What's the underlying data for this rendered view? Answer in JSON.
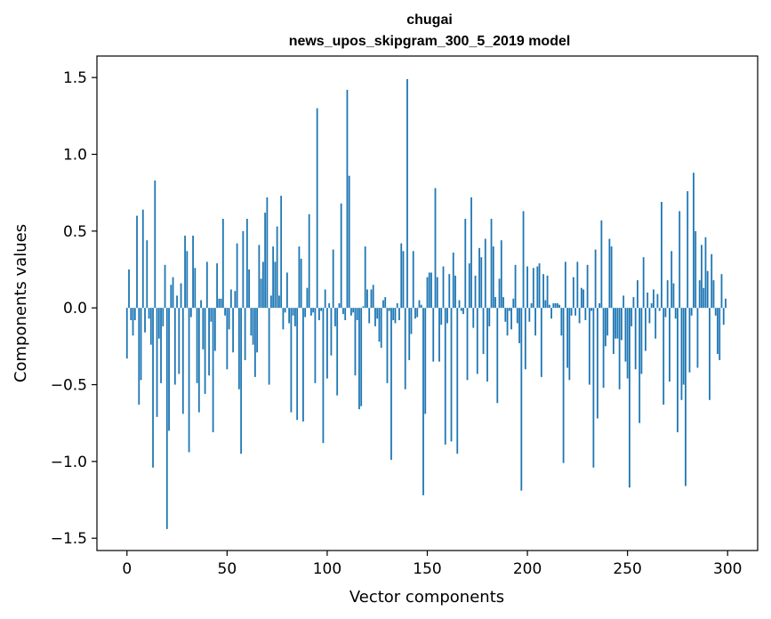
{
  "chart_data": {
    "type": "bar",
    "title": "chugai",
    "subtitle": "news_upos_skipgram_300_5_2019 model",
    "xlabel": "Vector components",
    "ylabel": "Components values",
    "xlim": [
      -15,
      315
    ],
    "ylim": [
      -1.58,
      1.64
    ],
    "xticks": [
      0,
      50,
      100,
      150,
      200,
      250,
      300
    ],
    "yticks": [
      -1.5,
      -1.0,
      -0.5,
      0.0,
      0.5,
      1.0,
      1.5
    ],
    "ytick_labels": [
      "−1.5",
      "−1.0",
      "−0.5",
      "0.0",
      "0.5",
      "1.0",
      "1.5"
    ],
    "grid": false,
    "color": "#1f77b4",
    "values": [
      -0.33,
      0.25,
      -0.08,
      -0.18,
      -0.08,
      0.6,
      -0.63,
      -0.47,
      0.64,
      -0.16,
      0.44,
      -0.07,
      -0.24,
      -1.04,
      0.83,
      -0.71,
      -0.2,
      -0.49,
      -0.12,
      0.28,
      -1.44,
      -0.8,
      0.15,
      0.2,
      -0.5,
      0.08,
      -0.43,
      0.16,
      -0.69,
      0.47,
      0.37,
      -0.94,
      -0.06,
      0.47,
      0.26,
      -0.49,
      -0.68,
      0.05,
      -0.27,
      -0.56,
      0.3,
      -0.44,
      -0.09,
      -0.81,
      -0.28,
      0.29,
      0.06,
      0.06,
      0.58,
      -0.05,
      -0.4,
      -0.14,
      0.12,
      -0.29,
      0.11,
      0.42,
      -0.53,
      -0.95,
      0.5,
      -0.34,
      0.58,
      0.25,
      -0.18,
      -0.24,
      -0.45,
      -0.29,
      0.41,
      0.19,
      0.3,
      0.62,
      0.72,
      -0.5,
      0.08,
      0.4,
      0.3,
      0.53,
      0.08,
      0.73,
      -0.14,
      -0.03,
      0.23,
      -0.1,
      -0.68,
      -0.05,
      -0.12,
      -0.73,
      0.4,
      0.32,
      -0.74,
      -0.06,
      0.13,
      0.61,
      -0.05,
      -0.03,
      -0.49,
      1.3,
      -0.08,
      -0.02,
      -0.88,
      0.12,
      -0.46,
      0.03,
      -0.31,
      0.38,
      -0.12,
      -0.57,
      0.03,
      0.68,
      -0.04,
      -0.08,
      1.42,
      0.86,
      -0.05,
      -0.03,
      -0.44,
      -0.08,
      -0.66,
      -0.64,
      0.01,
      0.4,
      0.12,
      -0.1,
      0.12,
      0.15,
      -0.12,
      -0.07,
      -0.22,
      -0.26,
      0.05,
      0.07,
      -0.49,
      -0.02,
      -0.99,
      -0.08,
      -0.1,
      0.03,
      -0.08,
      0.42,
      0.37,
      -0.53,
      1.49,
      -0.34,
      -0.17,
      0.37,
      -0.07,
      -0.06,
      0.05,
      0.02,
      -1.22,
      -0.69,
      0.2,
      0.23,
      0.23,
      -0.35,
      0.78,
      0.2,
      -0.35,
      -0.11,
      0.27,
      -0.89,
      -0.1,
      0.22,
      -0.87,
      0.36,
      0.21,
      -0.95,
      0.05,
      -0.02,
      -0.04,
      0.58,
      -0.47,
      0.29,
      0.72,
      -0.13,
      0.21,
      -0.43,
      0.39,
      0.33,
      -0.3,
      0.45,
      -0.48,
      -0.12,
      0.58,
      0.4,
      0.07,
      -0.62,
      0.19,
      0.44,
      0.07,
      -0.09,
      -0.18,
      -0.02,
      -0.14,
      0.06,
      0.28,
      -0.1,
      -0.23,
      -1.19,
      0.63,
      -0.4,
      0.27,
      -0.09,
      0.03,
      0.26,
      -0.18,
      0.27,
      0.29,
      -0.45,
      0.22,
      0.05,
      0.21,
      0.02,
      -0.07,
      0.03,
      0.03,
      0.03,
      0.02,
      -0.18,
      -1.01,
      0.3,
      -0.39,
      -0.47,
      -0.05,
      0.2,
      -0.05,
      0.3,
      -0.1,
      0.13,
      0.12,
      -0.08,
      0.28,
      -0.5,
      -0.02,
      -1.04,
      0.38,
      -0.72,
      0.03,
      0.57,
      -0.52,
      -0.25,
      -0.18,
      0.45,
      0.4,
      -0.3,
      -0.2,
      -0.2,
      -0.53,
      -0.21,
      0.08,
      -0.35,
      -0.46,
      -1.17,
      -0.12,
      0.07,
      -0.4,
      0.18,
      -0.75,
      -0.43,
      0.33,
      -0.28,
      0.1,
      -0.1,
      0.03,
      0.12,
      -0.2,
      0.09,
      -0.02,
      0.69,
      -0.63,
      -0.06,
      0.18,
      -0.48,
      0.37,
      0.16,
      -0.07,
      -0.81,
      0.63,
      -0.6,
      -0.5,
      -1.16,
      0.76,
      -0.42,
      -0.05,
      0.88,
      0.5,
      -0.39,
      0.18,
      0.41,
      0.13,
      0.46,
      0.24,
      -0.6,
      0.35,
      0.18,
      -0.05,
      -0.3,
      -0.34,
      0.22,
      -0.11,
      0.06
    ]
  }
}
